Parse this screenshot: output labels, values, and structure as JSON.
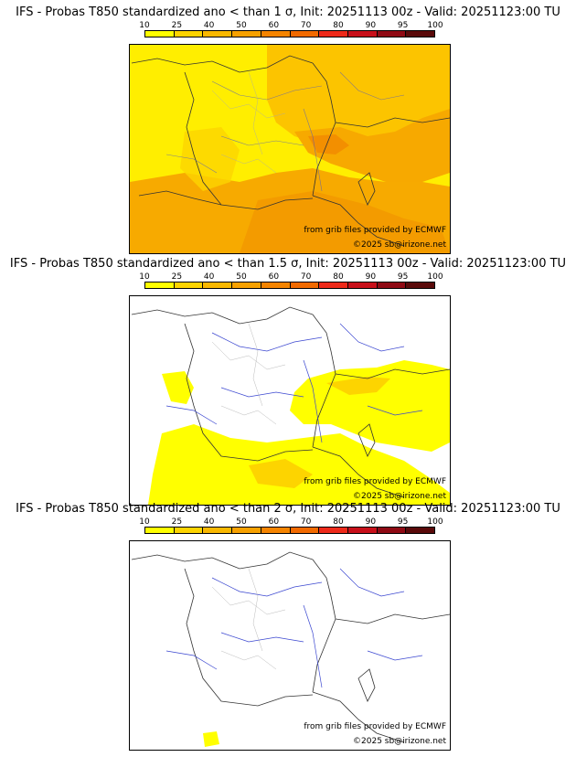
{
  "colorbar": {
    "ticks": [
      "10",
      "25",
      "40",
      "50",
      "60",
      "70",
      "80",
      "90",
      "95",
      "100"
    ],
    "colors": [
      "#ffff00",
      "#fdd400",
      "#f9b800",
      "#f7a100",
      "#f58400",
      "#f26a00",
      "#ee2a1a",
      "#c8101a",
      "#8f0a14",
      "#5a0a0a"
    ]
  },
  "panels": [
    {
      "title": "IFS - Probas T850  standardized ano < than 1 σ, Init: 20251113 00z - Valid: 20251123:00 TU",
      "credit_source": "from grib files provided by ECMWF",
      "credit_copyright": "©2025 sb@irizone.net",
      "field_level": "high",
      "background_color": "#f9c200"
    },
    {
      "title": "IFS - Probas T850  standardized ano < than 1.5 σ, Init: 20251113 00z - Valid: 20251123:00 TU",
      "credit_source": "from grib files provided by ECMWF",
      "credit_copyright": "©2025 sb@irizone.net",
      "field_level": "medium",
      "background_color": "#ffffff"
    },
    {
      "title": "IFS - Probas T850  standardized ano < than 2 σ, Init: 20251113 00z - Valid: 20251123:00 TU",
      "credit_source": "from grib files provided by ECMWF",
      "credit_copyright": "©2025 sb@irizone.net",
      "field_level": "low",
      "background_color": "#ffffff"
    }
  ]
}
